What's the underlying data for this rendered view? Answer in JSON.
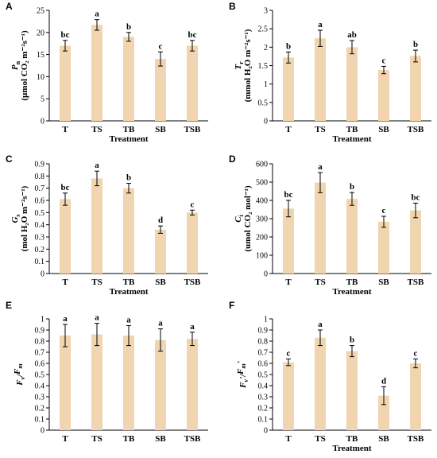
{
  "colors": {
    "bar": "#f1d4b0",
    "axis": "#000000",
    "error": "#000000"
  },
  "chart_data": [
    {
      "panel": "A",
      "type": "bar",
      "categories": [
        "T",
        "TS",
        "TB",
        "SB",
        "TSB"
      ],
      "values": [
        17,
        21.7,
        19,
        14,
        17
      ],
      "errors": [
        1.2,
        1.2,
        1.0,
        1.6,
        1.2
      ],
      "letters": [
        "bc",
        "a",
        "b",
        "c",
        "bc"
      ],
      "ylim": [
        0,
        25
      ],
      "ticks": [
        0,
        5,
        10,
        15,
        20,
        25
      ],
      "ylabel_sym": "P",
      "ylabel_sub": "n",
      "ylabel_unit": "(μmol CO₂ m⁻²s⁻¹)",
      "xlabel": "Treatment"
    },
    {
      "panel": "B",
      "type": "bar",
      "categories": [
        "T",
        "TS",
        "TB",
        "SB",
        "TSB"
      ],
      "values": [
        1.72,
        2.24,
        2.0,
        1.38,
        1.76
      ],
      "errors": [
        0.15,
        0.22,
        0.18,
        0.1,
        0.16
      ],
      "letters": [
        "b",
        "a",
        "ab",
        "c",
        "b"
      ],
      "ylim": [
        0,
        3
      ],
      "ticks": [
        0,
        0.5,
        1,
        1.5,
        2,
        2.5,
        3
      ],
      "ylabel_sym": "T",
      "ylabel_sub": "r",
      "ylabel_unit": "(mmol H₂O m⁻²s⁻¹)",
      "xlabel": "Treatment"
    },
    {
      "panel": "C",
      "type": "bar",
      "categories": [
        "T",
        "TS",
        "TB",
        "SB",
        "TSB"
      ],
      "values": [
        0.61,
        0.78,
        0.7,
        0.36,
        0.5
      ],
      "errors": [
        0.05,
        0.06,
        0.04,
        0.03,
        0.02
      ],
      "letters": [
        "bc",
        "a",
        "b",
        "d",
        "c"
      ],
      "ylim": [
        0,
        0.9
      ],
      "ticks": [
        0,
        0.1,
        0.2,
        0.3,
        0.4,
        0.5,
        0.6,
        0.7,
        0.8,
        0.9
      ],
      "ylabel_sym": "G",
      "ylabel_sub": "s",
      "ylabel_unit": "(mol H₂O  m⁻²s⁻¹)",
      "xlabel": "Treatment"
    },
    {
      "panel": "D",
      "type": "bar",
      "categories": [
        "T",
        "TS",
        "TB",
        "SB",
        "TSB"
      ],
      "values": [
        355,
        497,
        408,
        283,
        345
      ],
      "errors": [
        45,
        55,
        35,
        30,
        40
      ],
      "letters": [
        "bc",
        "a",
        "b",
        "c",
        "bc"
      ],
      "ylim": [
        0,
        600
      ],
      "ticks": [
        0,
        100,
        200,
        300,
        400,
        500,
        600
      ],
      "ylabel_sym": "C",
      "ylabel_sub": "i",
      "ylabel_unit": "(umol CO₂ mol⁻¹)",
      "xlabel": "Treatment"
    },
    {
      "panel": "E",
      "type": "bar",
      "categories": [
        "T",
        "TS",
        "TB",
        "SB",
        "TSB"
      ],
      "values": [
        0.85,
        0.86,
        0.85,
        0.81,
        0.82
      ],
      "errors": [
        0.1,
        0.1,
        0.09,
        0.1,
        0.06
      ],
      "letters": [
        "a",
        "a",
        "a",
        "a",
        "a"
      ],
      "ylim": [
        0,
        1
      ],
      "ticks": [
        0,
        0.1,
        0.2,
        0.3,
        0.4,
        0.5,
        0.6,
        0.7,
        0.8,
        0.9,
        1
      ],
      "ylabel_html": "Fv/Fm",
      "xlabel": ""
    },
    {
      "panel": "F",
      "type": "bar",
      "categories": [
        "T",
        "TS",
        "TB",
        "SB",
        "TSB"
      ],
      "values": [
        0.61,
        0.83,
        0.71,
        0.31,
        0.6
      ],
      "errors": [
        0.03,
        0.07,
        0.05,
        0.08,
        0.04
      ],
      "letters": [
        "c",
        "a",
        "b",
        "d",
        "c"
      ],
      "ylim": [
        0,
        1
      ],
      "ticks": [
        0,
        0.1,
        0.2,
        0.3,
        0.4,
        0.5,
        0.6,
        0.7,
        0.8,
        0.9,
        1
      ],
      "ylabel_html": "Fv'/Fm'",
      "xlabel": "Treatment"
    }
  ]
}
